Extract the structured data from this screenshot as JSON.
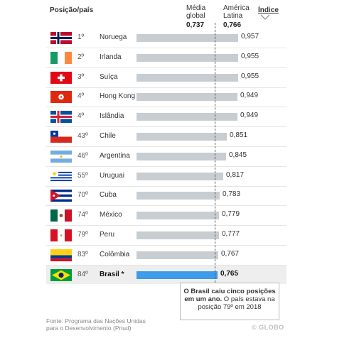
{
  "header": {
    "position_country": "Posição/país",
    "global_avg_label_1": "Média",
    "global_avg_label_2": "global",
    "global_avg_value": "0,737",
    "latam_label_1": "América",
    "latam_label_2": "Latina",
    "latam_value": "0,766",
    "index_label": "Índice",
    "sort_icon": "chevron-down-icon"
  },
  "chart_data": {
    "type": "bar",
    "orientation": "horizontal",
    "xlim": [
      0,
      1
    ],
    "reference_lines": [
      {
        "label": "Média global",
        "value": 0.737
      },
      {
        "label": "América Latina",
        "value": 0.766
      }
    ],
    "rows": [
      {
        "rank": "1º",
        "country": "Noruega",
        "value": 0.957,
        "label": "0,957",
        "flag": "norway-flag-icon"
      },
      {
        "rank": "2º",
        "country": "Irlanda",
        "value": 0.955,
        "label": "0,955",
        "flag": "ireland-flag-icon"
      },
      {
        "rank": "3º",
        "country": "Suíça",
        "value": 0.955,
        "label": "0,955",
        "flag": "switzerland-flag-icon"
      },
      {
        "rank": "4º",
        "country": "Hong Kong",
        "value": 0.949,
        "label": "0,949",
        "flag": "hong-kong-flag-icon"
      },
      {
        "rank": "4º",
        "country": "Islândia",
        "value": 0.949,
        "label": "0,949",
        "flag": "iceland-flag-icon"
      },
      {
        "rank": "43º",
        "country": "Chile",
        "value": 0.851,
        "label": "0,851",
        "flag": "chile-flag-icon"
      },
      {
        "rank": "46º",
        "country": "Argentina",
        "value": 0.845,
        "label": "0,845",
        "flag": "argentina-flag-icon"
      },
      {
        "rank": "55º",
        "country": "Uruguai",
        "value": 0.817,
        "label": "0,817",
        "flag": "uruguay-flag-icon"
      },
      {
        "rank": "70º",
        "country": "Cuba",
        "value": 0.783,
        "label": "0,783",
        "flag": "cuba-flag-icon"
      },
      {
        "rank": "74º",
        "country": "México",
        "value": 0.779,
        "label": "0,779",
        "flag": "mexico-flag-icon"
      },
      {
        "rank": "79º",
        "country": "Peru",
        "value": 0.777,
        "label": "0,777",
        "flag": "peru-flag-icon"
      },
      {
        "rank": "83º",
        "country": "Colômbia",
        "value": 0.767,
        "label": "0,767",
        "flag": "colombia-flag-icon"
      },
      {
        "rank": "84º",
        "country": "Brasil *",
        "value": 0.765,
        "label": "0,765",
        "flag": "brazil-flag-icon",
        "highlight": true
      }
    ],
    "colors": {
      "bar": "#c8cdd2",
      "highlight_bar": "#3d9be9",
      "highlight_row": "#eeeeee"
    }
  },
  "note": {
    "bold": "O Brasil caiu cinco posições em um ano.",
    "rest": " O país estava na posição 79º em 2018"
  },
  "source": {
    "line1": "Fonte: Programa das Nações Unidas",
    "line2": "para o Desenvolvimento (Pnud)"
  },
  "logo": "© GLOBO"
}
